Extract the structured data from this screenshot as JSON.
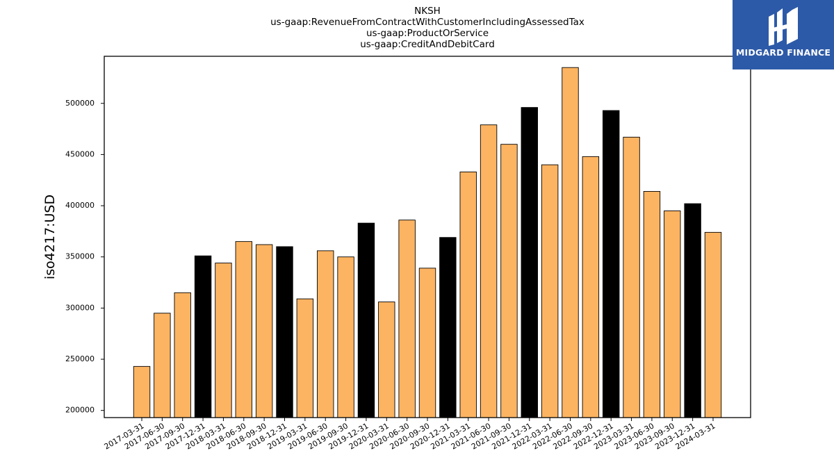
{
  "chart_data": {
    "type": "bar",
    "title_lines": [
      "NKSH",
      "us-gaap:RevenueFromContractWithCustomerIncludingAssessedTax",
      "us-gaap:ProductOrService",
      "us-gaap:CreditAndDebitCard"
    ],
    "xlabel": "",
    "ylabel": "iso4217:USD",
    "ylim": [
      193000,
      546000
    ],
    "yticks": [
      200000,
      250000,
      300000,
      350000,
      400000,
      450000,
      500000
    ],
    "grid": false,
    "legend": "none",
    "colors": {
      "quarter": "#fdb462",
      "year_end": "#000000",
      "edge": "#000000"
    },
    "categories": [
      "2017-03-31",
      "2017-06-30",
      "2017-09-30",
      "2017-12-31",
      "2018-03-31",
      "2018-06-30",
      "2018-09-30",
      "2018-12-31",
      "2019-03-31",
      "2019-06-30",
      "2019-09-30",
      "2019-12-31",
      "2020-03-31",
      "2020-06-30",
      "2020-09-30",
      "2020-12-31",
      "2021-03-31",
      "2021-06-30",
      "2021-09-30",
      "2021-12-31",
      "2022-03-31",
      "2022-06-30",
      "2022-09-30",
      "2022-12-31",
      "2023-03-31",
      "2023-06-30",
      "2023-09-30",
      "2023-12-31",
      "2024-03-31"
    ],
    "values": [
      243000,
      295000,
      315000,
      351000,
      344000,
      365000,
      362000,
      360000,
      309000,
      356000,
      350000,
      383000,
      306000,
      386000,
      339000,
      369000,
      433000,
      479000,
      460000,
      496000,
      440000,
      535000,
      448000,
      493000,
      467000,
      414000,
      395000,
      402000,
      374000
    ],
    "year_end_flags": [
      false,
      false,
      false,
      true,
      false,
      false,
      false,
      true,
      false,
      false,
      false,
      true,
      false,
      false,
      false,
      true,
      false,
      false,
      false,
      true,
      false,
      false,
      false,
      true,
      false,
      false,
      false,
      true,
      false
    ]
  },
  "logo": {
    "text": "MIDGARD FINANCE"
  }
}
